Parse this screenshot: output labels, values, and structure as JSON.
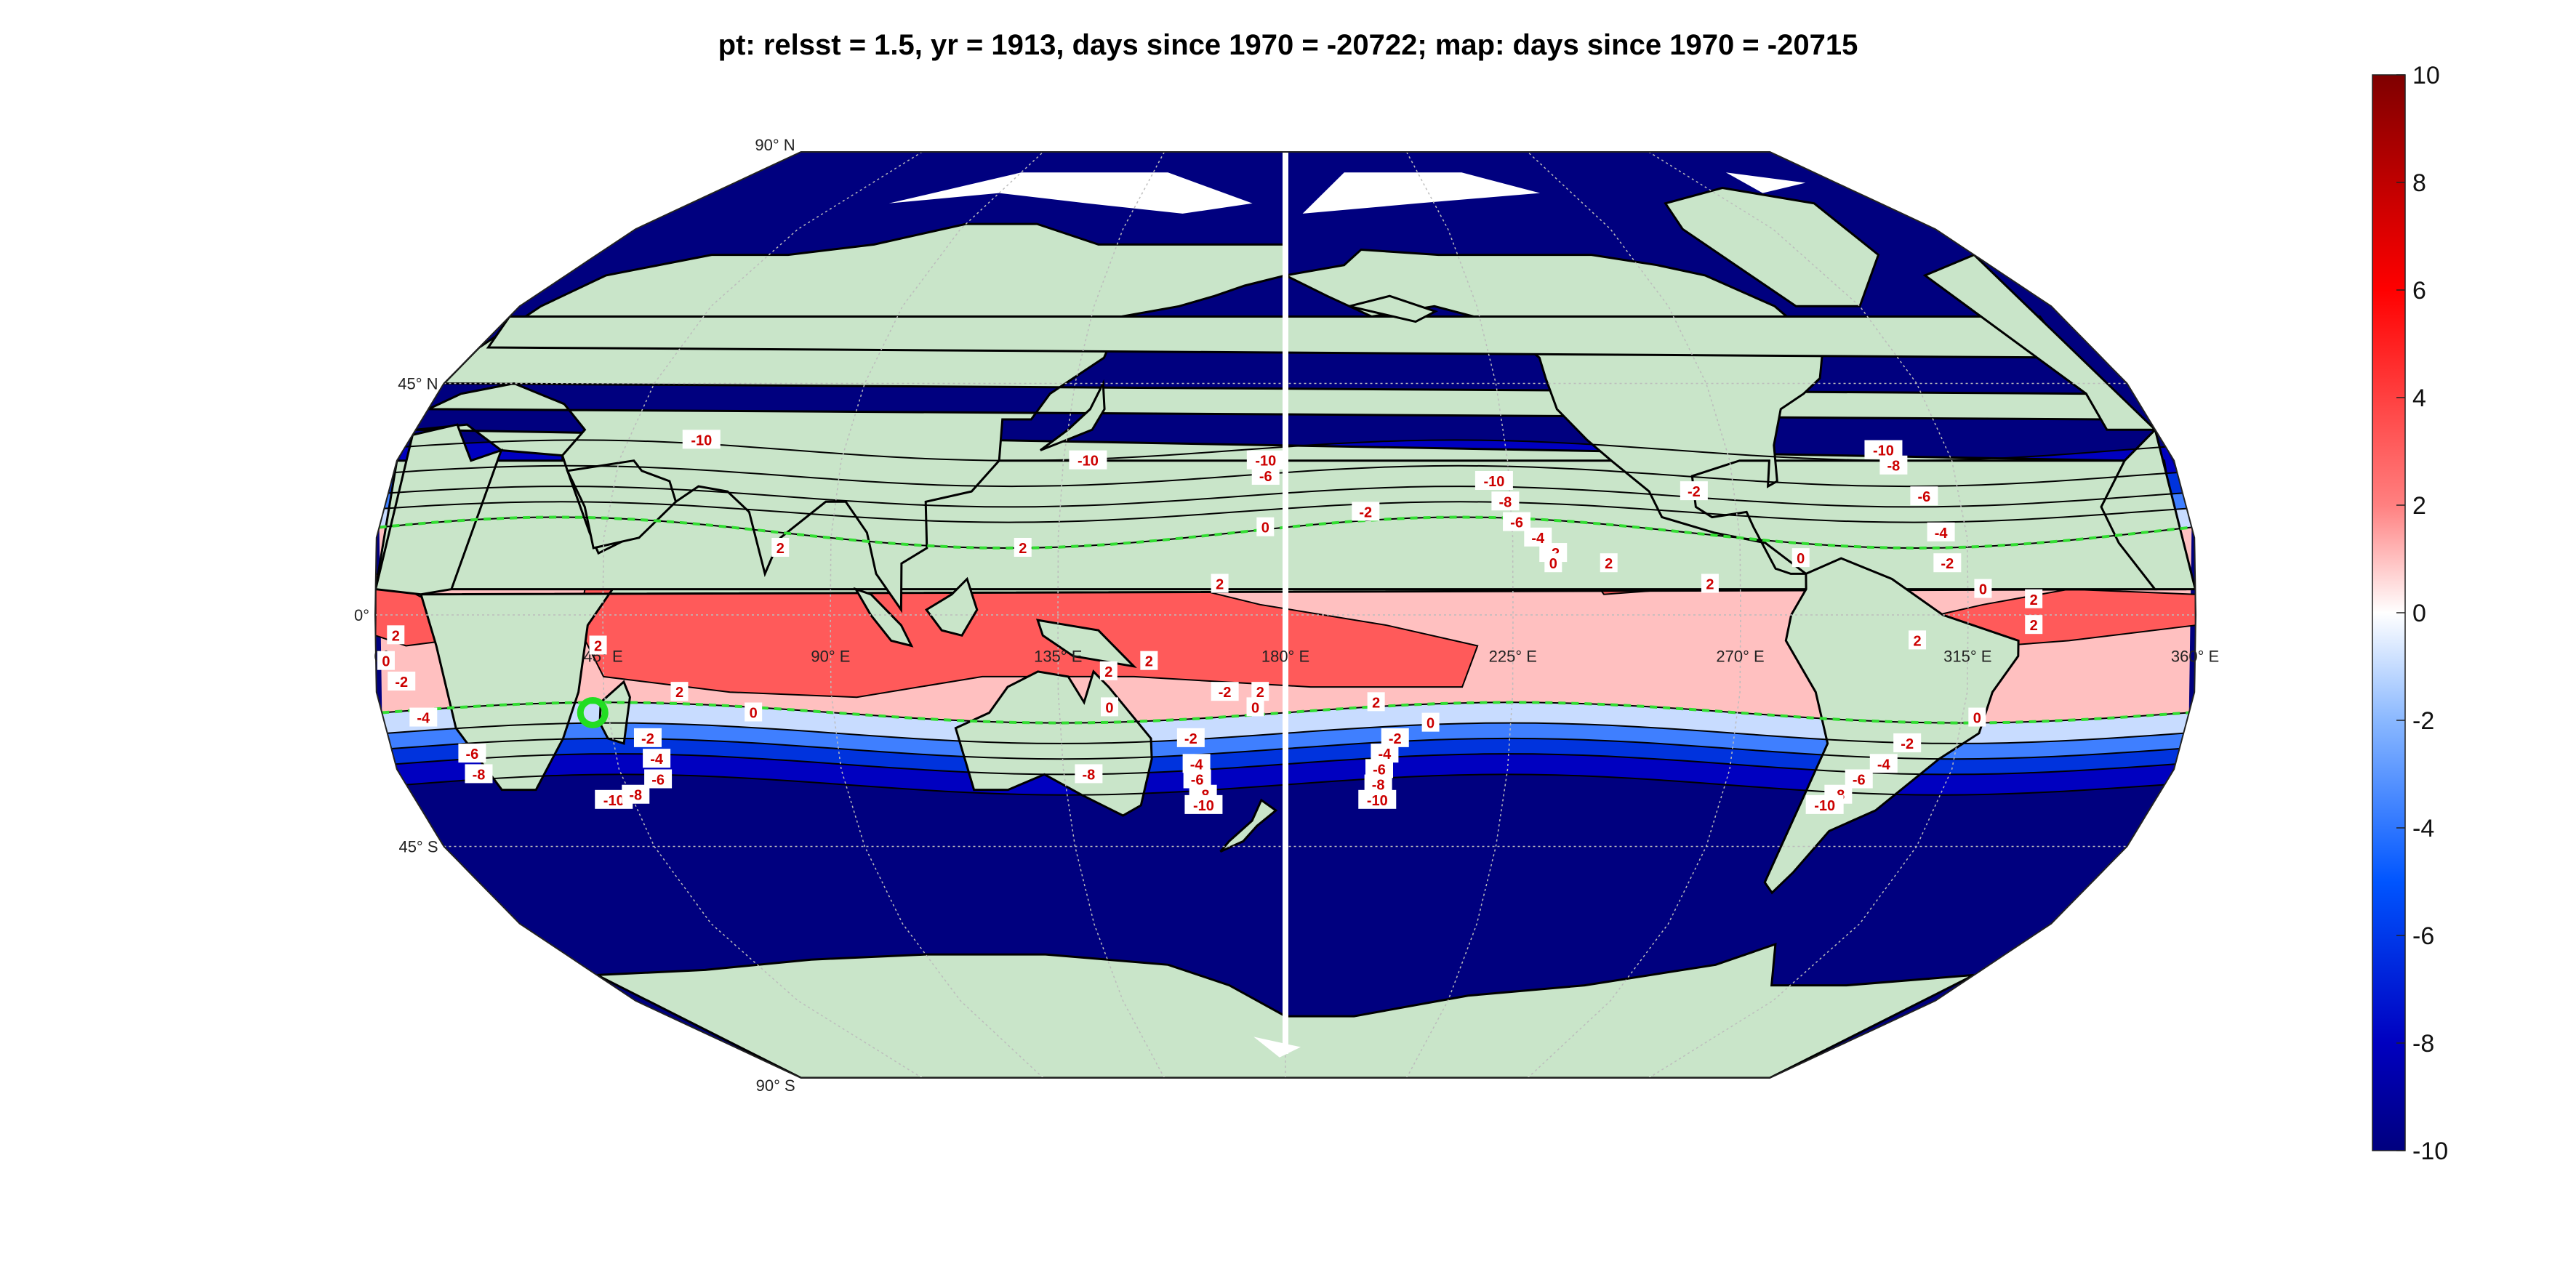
{
  "title": "pt: relsst = 1.5, yr = 1913, days since 1970 = -20722; map: days since 1970 = -20715",
  "graticule": {
    "lat_labels": [
      "90° N",
      "45° N",
      "0°",
      "45° S",
      "90° S"
    ],
    "lon_labels": [
      "0°",
      "45° E",
      "90° E",
      "135° E",
      "180° E",
      "225° E",
      "270° E",
      "315° E",
      "360° E"
    ]
  },
  "colorbar": {
    "ticks": [
      "10",
      "8",
      "6",
      "4",
      "2",
      "0",
      "-2",
      "-4",
      "-6",
      "-8",
      "-10"
    ],
    "min": -10,
    "max": 10
  },
  "contour_labels": [
    {
      "lon": 60,
      "lat": 34,
      "text": "-10"
    },
    {
      "lon": 140,
      "lat": 30,
      "text": "-10"
    },
    {
      "lon": 176,
      "lat": 30,
      "text": "-10"
    },
    {
      "lon": 176,
      "lat": 27,
      "text": "-6"
    },
    {
      "lon": 176,
      "lat": 17,
      "text": "0"
    },
    {
      "lon": 196,
      "lat": 20,
      "text": "-2"
    },
    {
      "lon": 222,
      "lat": 26,
      "text": "-10"
    },
    {
      "lon": 224,
      "lat": 22,
      "text": "-8"
    },
    {
      "lon": 226,
      "lat": 18,
      "text": "-6"
    },
    {
      "lon": 230,
      "lat": 15,
      "text": "-4"
    },
    {
      "lon": 233,
      "lat": 12,
      "text": "-2"
    },
    {
      "lon": 233,
      "lat": 10,
      "text": "0"
    },
    {
      "lon": 244,
      "lat": 10,
      "text": "2"
    },
    {
      "lon": 262,
      "lat": 24,
      "text": "-2"
    },
    {
      "lon": 264,
      "lat": 6,
      "text": "2"
    },
    {
      "lon": 282,
      "lat": 11,
      "text": "0"
    },
    {
      "lon": 302,
      "lat": 32,
      "text": "-10"
    },
    {
      "lon": 303,
      "lat": 29,
      "text": "-8"
    },
    {
      "lon": 308,
      "lat": 23,
      "text": "-6"
    },
    {
      "lon": 310,
      "lat": 16,
      "text": "-4"
    },
    {
      "lon": 311,
      "lat": 10,
      "text": "-2"
    },
    {
      "lon": 318,
      "lat": 5,
      "text": "0"
    },
    {
      "lon": 328,
      "lat": 3,
      "text": "2"
    },
    {
      "lon": 328,
      "lat": -2,
      "text": "2"
    },
    {
      "lon": 305,
      "lat": -5,
      "text": "2"
    },
    {
      "lon": 80,
      "lat": 13,
      "text": "2"
    },
    {
      "lon": 128,
      "lat": 13,
      "text": "2"
    },
    {
      "lon": 167,
      "lat": 6,
      "text": "2"
    },
    {
      "lon": 4,
      "lat": -4,
      "text": "2"
    },
    {
      "lon": 2,
      "lat": -9,
      "text": "0"
    },
    {
      "lon": 5,
      "lat": -13,
      "text": "-2"
    },
    {
      "lon": 8,
      "lat": -20,
      "text": "-4"
    },
    {
      "lon": 16,
      "lat": -27,
      "text": "-6"
    },
    {
      "lon": 16,
      "lat": -31,
      "text": "-8"
    },
    {
      "lon": 41,
      "lat": -36,
      "text": "-10"
    },
    {
      "lon": 46,
      "lat": -35,
      "text": "-8"
    },
    {
      "lon": 52,
      "lat": -32,
      "text": "-6"
    },
    {
      "lon": 53,
      "lat": -28,
      "text": "-4"
    },
    {
      "lon": 52,
      "lat": -24,
      "text": "-2"
    },
    {
      "lon": 44,
      "lat": -6,
      "text": "2"
    },
    {
      "lon": 60,
      "lat": -15,
      "text": "2"
    },
    {
      "lon": 74,
      "lat": -19,
      "text": "0"
    },
    {
      "lon": 145,
      "lat": -11,
      "text": "2"
    },
    {
      "lon": 153,
      "lat": -9,
      "text": "2"
    },
    {
      "lon": 145,
      "lat": -18,
      "text": "0"
    },
    {
      "lon": 168,
      "lat": -15,
      "text": "-2"
    },
    {
      "lon": 175,
      "lat": -15,
      "text": "2"
    },
    {
      "lon": 174,
      "lat": -18,
      "text": "0"
    },
    {
      "lon": 198,
      "lat": -17,
      "text": "2"
    },
    {
      "lon": 209,
      "lat": -21,
      "text": "0"
    },
    {
      "lon": 202,
      "lat": -24,
      "text": "-2"
    },
    {
      "lon": 200,
      "lat": -27,
      "text": "-4"
    },
    {
      "lon": 199,
      "lat": -30,
      "text": "-6"
    },
    {
      "lon": 199,
      "lat": -33,
      "text": "-8"
    },
    {
      "lon": 199,
      "lat": -36,
      "text": "-10"
    },
    {
      "lon": 161,
      "lat": -24,
      "text": "-2"
    },
    {
      "lon": 162,
      "lat": -29,
      "text": "-4"
    },
    {
      "lon": 162,
      "lat": -32,
      "text": "-6"
    },
    {
      "lon": 163,
      "lat": -35,
      "text": "-8"
    },
    {
      "lon": 163,
      "lat": -37,
      "text": "-10"
    },
    {
      "lon": 140,
      "lat": -31,
      "text": "-8"
    },
    {
      "lon": 318,
      "lat": -20,
      "text": "0"
    },
    {
      "lon": 305,
      "lat": -25,
      "text": "-2"
    },
    {
      "lon": 301,
      "lat": -29,
      "text": "-4"
    },
    {
      "lon": 297,
      "lat": -32,
      "text": "-6"
    },
    {
      "lon": 294,
      "lat": -35,
      "text": "-8"
    },
    {
      "lon": 292,
      "lat": -37,
      "text": "-10"
    }
  ],
  "marker": {
    "lon": 42,
    "lat": -19
  },
  "colors": {
    "ocean_deep": "#00007f",
    "land": "#c9e5c9",
    "ice": "#ffffff",
    "marker": "#22dd22",
    "zero_contour": "#33dd33"
  }
}
